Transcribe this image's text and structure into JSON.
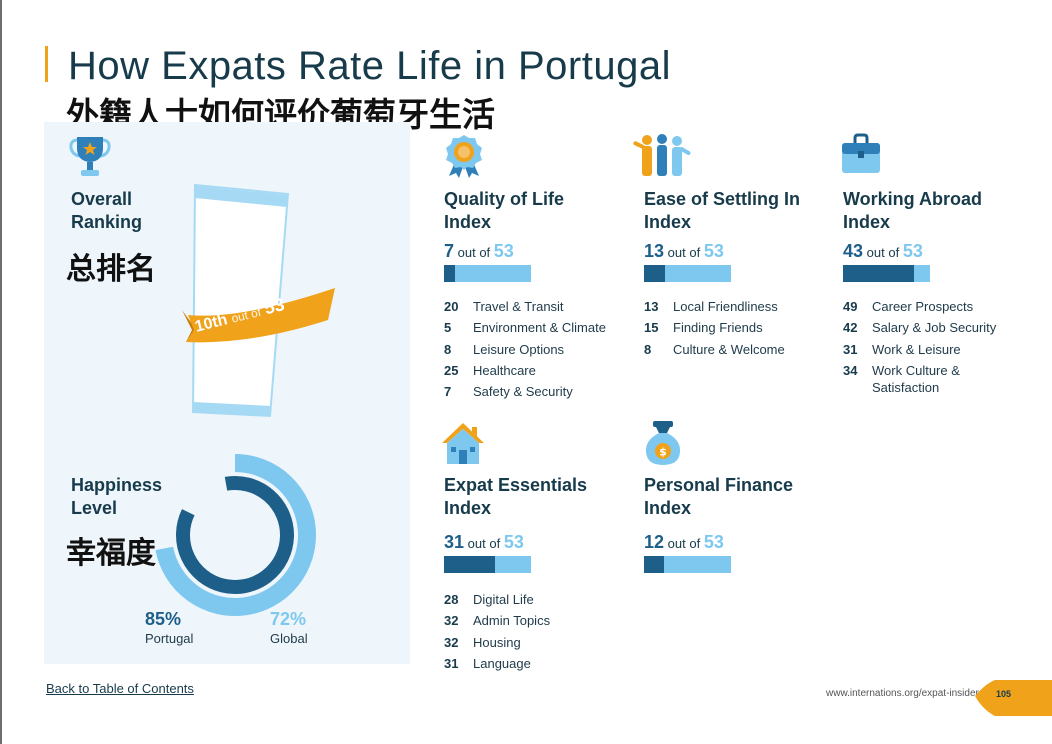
{
  "title": "How Expats Rate Life in Portugal",
  "title_cn": "外籍人士如何评价葡萄牙生活",
  "overall": {
    "title": "Overall Ranking",
    "title_line1": "Overall",
    "title_line2": "Ranking",
    "title_cn": "总排名",
    "rank": "10th",
    "out_of": "out of",
    "total": "53"
  },
  "happiness": {
    "title_line1": "Happiness",
    "title_line2": "Level",
    "title_cn": "幸福度",
    "portugal_value": "85%",
    "portugal_label": "Portugal",
    "global_value": "72%",
    "global_label": "Global",
    "portugal_fraction": 0.85,
    "global_fraction": 0.72
  },
  "out_of_text": "out of",
  "indices": [
    {
      "line1": "Quality of Life",
      "line2": "Index",
      "rank": "7",
      "total": "53",
      "rank_value": 7,
      "total_value": 53,
      "items": [
        {
          "num": "20",
          "label": "Travel & Transit"
        },
        {
          "num": "5",
          "label": "Environment & Climate"
        },
        {
          "num": "8",
          "label": "Leisure Options"
        },
        {
          "num": "25",
          "label": "Healthcare"
        },
        {
          "num": "7",
          "label": "Safety & Security"
        }
      ]
    },
    {
      "line1": "Ease of Settling In",
      "line2": "Index",
      "rank": "13",
      "total": "53",
      "rank_value": 13,
      "total_value": 53,
      "items": [
        {
          "num": "13",
          "label": "Local Friendliness"
        },
        {
          "num": "15",
          "label": "Finding Friends"
        },
        {
          "num": "8",
          "label": "Culture & Welcome"
        }
      ]
    },
    {
      "line1": "Working Abroad",
      "line2": "Index",
      "rank": "43",
      "total": "53",
      "rank_value": 43,
      "total_value": 53,
      "items": [
        {
          "num": "49",
          "label": "Career Prospects"
        },
        {
          "num": "42",
          "label": "Salary & Job Security"
        },
        {
          "num": "31",
          "label": "Work & Leisure"
        },
        {
          "num": "34",
          "label": "Work Culture & Satisfaction"
        }
      ]
    },
    {
      "line1": "Expat Essentials",
      "line2": "Index",
      "rank": "31",
      "total": "53",
      "rank_value": 31,
      "total_value": 53,
      "items": [
        {
          "num": "28",
          "label": "Digital Life"
        },
        {
          "num": "32",
          "label": "Admin Topics"
        },
        {
          "num": "32",
          "label": "Housing"
        },
        {
          "num": "31",
          "label": "Language"
        }
      ]
    },
    {
      "line1": "Personal Finance",
      "line2": "Index",
      "rank": "12",
      "total": "53",
      "rank_value": 12,
      "total_value": 53,
      "items": []
    }
  ],
  "icons": [
    "trophy-icon",
    "medal-icon",
    "people-icon",
    "briefcase-icon",
    "house-icon",
    "money-bag-icon"
  ],
  "footer": {
    "back_link": "Back to Table of Contents",
    "url": "www.internations.org/expat-insider",
    "page": "105"
  },
  "colors": {
    "dark_blue": "#1e5f8a",
    "light_blue": "#7ec8ef",
    "accent_orange": "#f0a21a",
    "panel_bg": "#eef6fb"
  }
}
